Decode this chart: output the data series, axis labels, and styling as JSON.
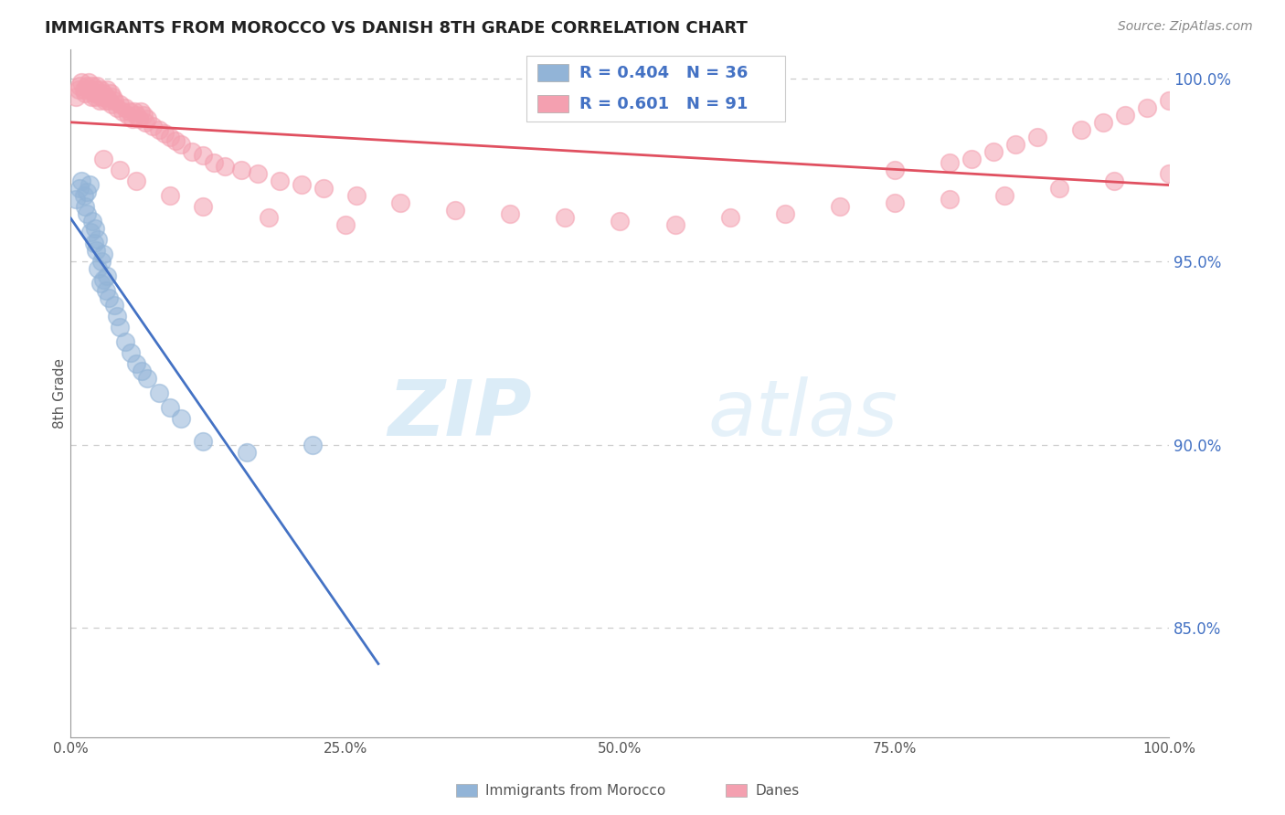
{
  "title": "IMMIGRANTS FROM MOROCCO VS DANISH 8TH GRADE CORRELATION CHART",
  "source": "Source: ZipAtlas.com",
  "ylabel": "8th Grade",
  "legend_blue_r": "R = 0.404",
  "legend_blue_n": "N = 36",
  "legend_pink_r": "R = 0.601",
  "legend_pink_n": "N = 91",
  "legend_label_blue": "Immigrants from Morocco",
  "legend_label_pink": "Danes",
  "blue_color": "#92b4d7",
  "pink_color": "#f4a0b0",
  "blue_line_color": "#4472c4",
  "pink_line_color": "#e05060",
  "watermark_zip": "ZIP",
  "watermark_atlas": "atlas",
  "xlim": [
    0.0,
    1.0
  ],
  "ylim": [
    0.82,
    1.008
  ],
  "yticks": [
    0.85,
    0.9,
    0.95,
    1.0
  ],
  "ytick_labels": [
    "85.0%",
    "90.0%",
    "95.0%",
    "100.0%"
  ],
  "xticks": [
    0.0,
    0.25,
    0.5,
    0.75,
    1.0
  ],
  "xtick_labels": [
    "0.0%",
    "25.0%",
    "50.0%",
    "75.0%",
    "100.0%"
  ],
  "blue_x": [
    0.005,
    0.008,
    0.01,
    0.012,
    0.013,
    0.015,
    0.015,
    0.017,
    0.018,
    0.02,
    0.021,
    0.022,
    0.023,
    0.025,
    0.025,
    0.027,
    0.028,
    0.03,
    0.03,
    0.032,
    0.033,
    0.035,
    0.04,
    0.042,
    0.045,
    0.05,
    0.055,
    0.06,
    0.065,
    0.07,
    0.08,
    0.09,
    0.1,
    0.12,
    0.16,
    0.22
  ],
  "blue_y": [
    0.967,
    0.97,
    0.972,
    0.968,
    0.965,
    0.963,
    0.969,
    0.971,
    0.958,
    0.961,
    0.955,
    0.959,
    0.953,
    0.948,
    0.956,
    0.944,
    0.95,
    0.945,
    0.952,
    0.942,
    0.946,
    0.94,
    0.938,
    0.935,
    0.932,
    0.928,
    0.925,
    0.922,
    0.92,
    0.918,
    0.914,
    0.91,
    0.907,
    0.901,
    0.898,
    0.9
  ],
  "pink_x": [
    0.005,
    0.007,
    0.008,
    0.01,
    0.012,
    0.013,
    0.015,
    0.016,
    0.018,
    0.019,
    0.02,
    0.021,
    0.022,
    0.023,
    0.024,
    0.025,
    0.026,
    0.027,
    0.028,
    0.03,
    0.031,
    0.032,
    0.033,
    0.035,
    0.036,
    0.037,
    0.038,
    0.04,
    0.042,
    0.045,
    0.047,
    0.05,
    0.052,
    0.054,
    0.056,
    0.058,
    0.06,
    0.062,
    0.064,
    0.066,
    0.068,
    0.07,
    0.075,
    0.08,
    0.085,
    0.09,
    0.095,
    0.1,
    0.11,
    0.12,
    0.13,
    0.14,
    0.155,
    0.17,
    0.19,
    0.21,
    0.23,
    0.26,
    0.3,
    0.35,
    0.4,
    0.45,
    0.5,
    0.55,
    0.6,
    0.65,
    0.7,
    0.75,
    0.8,
    0.85,
    0.9,
    0.95,
    1.0,
    0.75,
    0.8,
    0.82,
    0.84,
    0.86,
    0.88,
    0.92,
    0.94,
    0.96,
    0.98,
    1.0,
    0.03,
    0.045,
    0.06,
    0.09,
    0.12,
    0.18,
    0.25
  ],
  "pink_y": [
    0.995,
    0.997,
    0.998,
    0.999,
    0.997,
    0.996,
    0.998,
    0.999,
    0.997,
    0.995,
    0.998,
    0.996,
    0.995,
    0.997,
    0.998,
    0.996,
    0.994,
    0.997,
    0.995,
    0.996,
    0.994,
    0.995,
    0.997,
    0.994,
    0.996,
    0.993,
    0.995,
    0.994,
    0.992,
    0.993,
    0.991,
    0.992,
    0.99,
    0.991,
    0.989,
    0.991,
    0.99,
    0.989,
    0.991,
    0.99,
    0.988,
    0.989,
    0.987,
    0.986,
    0.985,
    0.984,
    0.983,
    0.982,
    0.98,
    0.979,
    0.977,
    0.976,
    0.975,
    0.974,
    0.972,
    0.971,
    0.97,
    0.968,
    0.966,
    0.964,
    0.963,
    0.962,
    0.961,
    0.96,
    0.962,
    0.963,
    0.965,
    0.966,
    0.967,
    0.968,
    0.97,
    0.972,
    0.974,
    0.975,
    0.977,
    0.978,
    0.98,
    0.982,
    0.984,
    0.986,
    0.988,
    0.99,
    0.992,
    0.994,
    0.978,
    0.975,
    0.972,
    0.968,
    0.965,
    0.962,
    0.96
  ]
}
